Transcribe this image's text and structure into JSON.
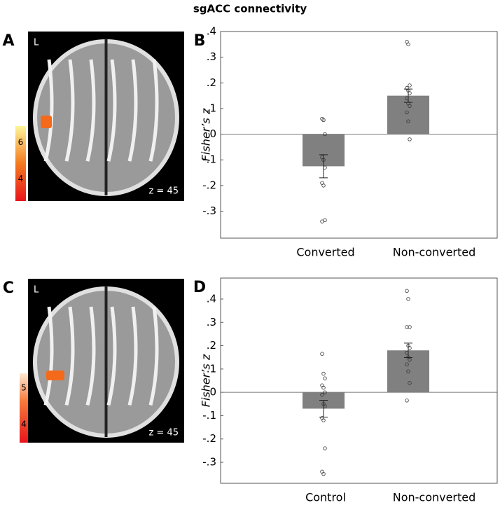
{
  "title": "sgACC connectivity",
  "brain_panels": [
    {
      "letter": "A",
      "side_label": "L",
      "slice_label": "z = 45",
      "colorbar_lim": [
        2.8,
        6.9
      ],
      "colorbar_ticks": [
        6,
        4
      ]
    },
    {
      "letter": "C",
      "side_label": "L",
      "slice_label": "z = 45",
      "colorbar_lim": [
        3.5,
        5.4
      ],
      "colorbar_ticks": [
        5,
        4
      ]
    }
  ],
  "chart_data": [
    {
      "type": "bar",
      "letter": "B",
      "ylabel": "Fisher’s z",
      "color": "#808080",
      "categories": [
        "Converted",
        "Non-converted"
      ],
      "values": [
        -0.125,
        0.15
      ],
      "errors": [
        0.045,
        0.026
      ],
      "points": [
        [
          0.06,
          0.055,
          0.0,
          -0.09,
          -0.1,
          -0.13,
          -0.19,
          -0.2,
          -0.335,
          -0.34
        ],
        [
          0.36,
          0.35,
          0.19,
          0.18,
          0.17,
          0.16,
          0.14,
          0.12,
          0.11,
          0.085,
          0.05,
          -0.02
        ]
      ],
      "ylim": [
        -0.405,
        0.4
      ],
      "yticks": [
        {
          "value": 0.4,
          "label": ".4"
        },
        {
          "value": 0.3,
          "label": ".3"
        },
        {
          "value": 0.2,
          "label": ".2"
        },
        {
          "value": 0.1,
          "label": ".1"
        },
        0,
        {
          "value": -0.1,
          "label": "-.1"
        },
        {
          "value": -0.2,
          "label": "-.2"
        },
        {
          "value": -0.3,
          "label": "-.3"
        }
      ]
    },
    {
      "type": "bar",
      "letter": "D",
      "ylabel": "Fisher’s z",
      "color": "#808080",
      "categories": [
        "Control",
        "Non-converted"
      ],
      "values": [
        -0.07,
        0.18
      ],
      "errors": [
        0.036,
        0.031
      ],
      "points": [
        [
          0.165,
          0.08,
          0.06,
          0.03,
          0.02,
          0.0,
          -0.01,
          -0.05,
          -0.06,
          -0.11,
          -0.12,
          -0.24,
          -0.34,
          -0.35
        ],
        [
          0.435,
          0.4,
          0.28,
          0.28,
          0.2,
          0.19,
          0.17,
          0.15,
          0.14,
          0.12,
          0.09,
          0.04,
          -0.035
        ]
      ],
      "ylim": [
        -0.39,
        0.49
      ],
      "yticks": [
        {
          "value": 0.4,
          "label": ".4"
        },
        {
          "value": 0.3,
          "label": ".3"
        },
        {
          "value": 0.2,
          "label": ".2"
        },
        {
          "value": 0.1,
          "label": ".1"
        },
        0,
        {
          "value": -0.1,
          "label": "-.1"
        },
        {
          "value": -0.2,
          "label": "-.2"
        },
        {
          "value": -0.3,
          "label": "-.3"
        }
      ]
    }
  ]
}
